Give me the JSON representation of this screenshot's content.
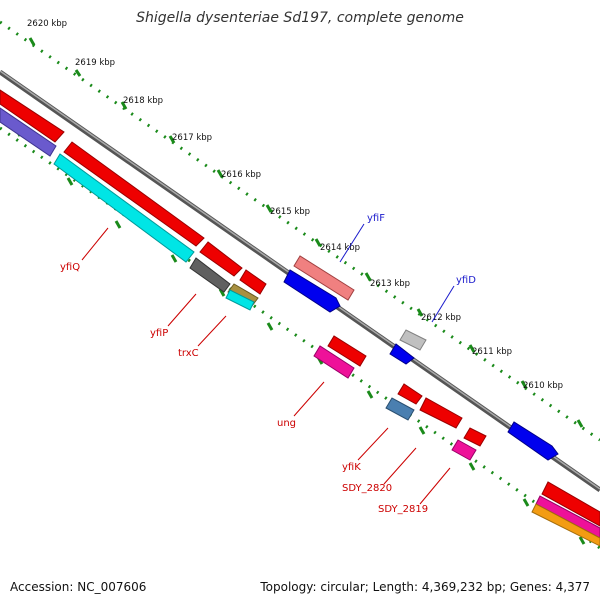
{
  "title": "Shigella dysenteriae Sd197, complete genome",
  "accession_text": "Accession: NC_007606",
  "topology_text": "Topology: circular; Length: 4,369,232 bp; Genes: 4,377",
  "ticks": [
    "2620 kbp",
    "2619 kbp",
    "2618 kbp",
    "2617 kbp",
    "2616 kbp",
    "2615 kbp",
    "2614 kbp",
    "2613 kbp",
    "2612 kbp",
    "2611 kbp",
    "2610 kbp"
  ],
  "gene_labels": {
    "yfiQ": "yfiQ",
    "yfiP": "yfiP",
    "trxC": "trxC",
    "ung": "ung",
    "yfiK": "yfiK",
    "SDY_2820": "SDY_2820",
    "SDY_2819": "SDY_2819",
    "yfiF": "yfiF",
    "yfiD": "yfiD"
  },
  "colors": {
    "backbone": "#777777",
    "tick_green": "#1a8a1a",
    "red": "#ee0000",
    "cyan": "#00e5e5",
    "blue": "#0000ee",
    "purple": "#6a5acd",
    "pink": "#ee1199",
    "salmon": "#f08080",
    "gray": "#606060",
    "light_gray": "#c0c0c0",
    "steel": "#4a7fb0",
    "olive": "#a89040"
  }
}
